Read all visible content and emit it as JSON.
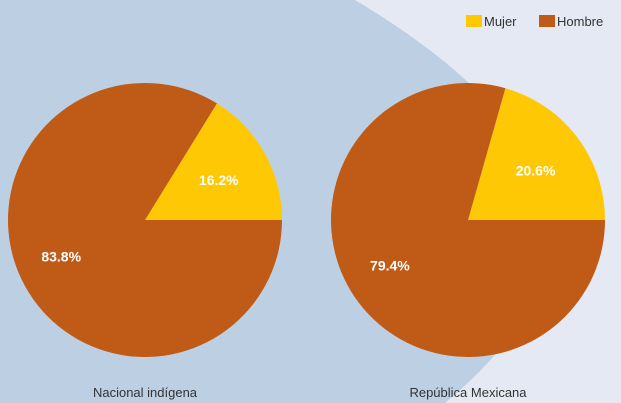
{
  "chart_data": {
    "type": "pie",
    "legend_position": "top-right",
    "series_labels": [
      "Mujer",
      "Hombre"
    ],
    "colors": {
      "Mujer": "#ffc805",
      "Hombre": "#c05a17"
    },
    "charts": [
      {
        "caption": "Nacional indígena",
        "slices": [
          {
            "label": "Mujer",
            "value": 16.2,
            "display": "16.2%"
          },
          {
            "label": "Hombre",
            "value": 83.8,
            "display": "83.8%"
          }
        ]
      },
      {
        "caption": "República Mexicana",
        "slices": [
          {
            "label": "Mujer",
            "value": 20.6,
            "display": "20.6%"
          },
          {
            "label": "Hombre",
            "value": 79.4,
            "display": "79.4%"
          }
        ]
      }
    ]
  }
}
